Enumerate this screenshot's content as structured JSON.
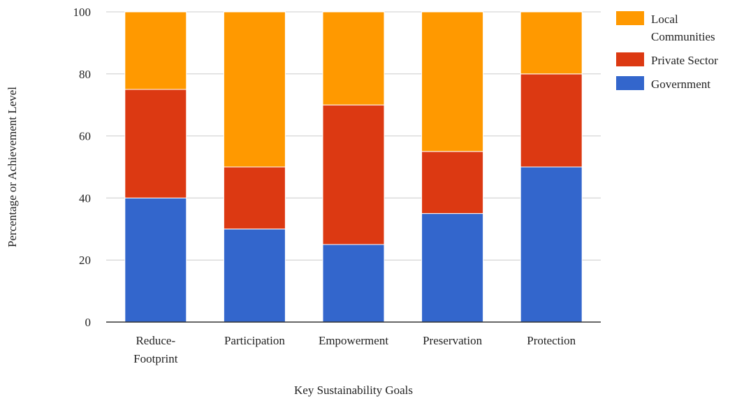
{
  "chart_data": {
    "type": "bar",
    "stacked": true,
    "title": "",
    "xlabel": "Key Sustainability Goals",
    "ylabel": "Percentage or Achievement Level",
    "ylim": [
      0,
      100
    ],
    "yticks": [
      0,
      20,
      40,
      60,
      80,
      100
    ],
    "grid": true,
    "legend_position": "top-right",
    "categories": [
      [
        "Reduce-",
        "Footprint"
      ],
      [
        "Participation"
      ],
      [
        "Empowerment"
      ],
      [
        "Preservation"
      ],
      [
        "Protection"
      ]
    ],
    "series": [
      {
        "name": "Government",
        "color": "#3366cc",
        "values": [
          40,
          30,
          25,
          35,
          50
        ]
      },
      {
        "name": "Private Sector",
        "color": "#dc3912",
        "values": [
          35,
          20,
          45,
          20,
          30
        ]
      },
      {
        "name": "Local Communities",
        "color": "#ff9900",
        "values": [
          25,
          50,
          30,
          45,
          20
        ]
      }
    ],
    "legend": [
      {
        "series": "Local Communities",
        "lines": [
          "Local",
          "Communities"
        ],
        "color": "#ff9900"
      },
      {
        "series": "Private Sector",
        "lines": [
          "Private Sector"
        ],
        "color": "#dc3912"
      },
      {
        "series": "Government",
        "lines": [
          "Government"
        ],
        "color": "#3366cc"
      }
    ]
  }
}
